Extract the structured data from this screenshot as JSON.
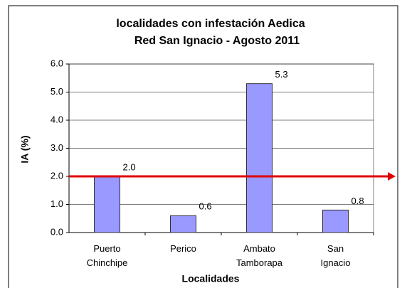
{
  "chart_data": {
    "type": "bar",
    "title": [
      "localidades con infestación Aedica",
      "Red San Ignacio - Agosto 2011"
    ],
    "x_label": "Localidades",
    "y_label": "IA (%)",
    "categories": [
      "Puerto Chinchipe",
      "Perico",
      "Ambato Tamborapa",
      "San Ignacio"
    ],
    "values": [
      2.0,
      0.6,
      5.3,
      0.8
    ],
    "value_labels": [
      "2.0",
      "0.6",
      "5.3",
      "0.8"
    ],
    "color": "#9999ff",
    "ylim": [
      0,
      6
    ],
    "yticks": [
      {
        "value": 0,
        "label": "0.0"
      },
      {
        "value": 1,
        "label": "1.0"
      },
      {
        "value": 2,
        "label": "2.0"
      },
      {
        "value": 3,
        "label": "3.0"
      },
      {
        "value": 4,
        "label": "4.0"
      },
      {
        "value": 5,
        "label": "5.0"
      },
      {
        "value": 6,
        "label": "6.0"
      }
    ],
    "grid": true,
    "reference_line": {
      "value": 2.0,
      "color": "#e00000"
    }
  }
}
